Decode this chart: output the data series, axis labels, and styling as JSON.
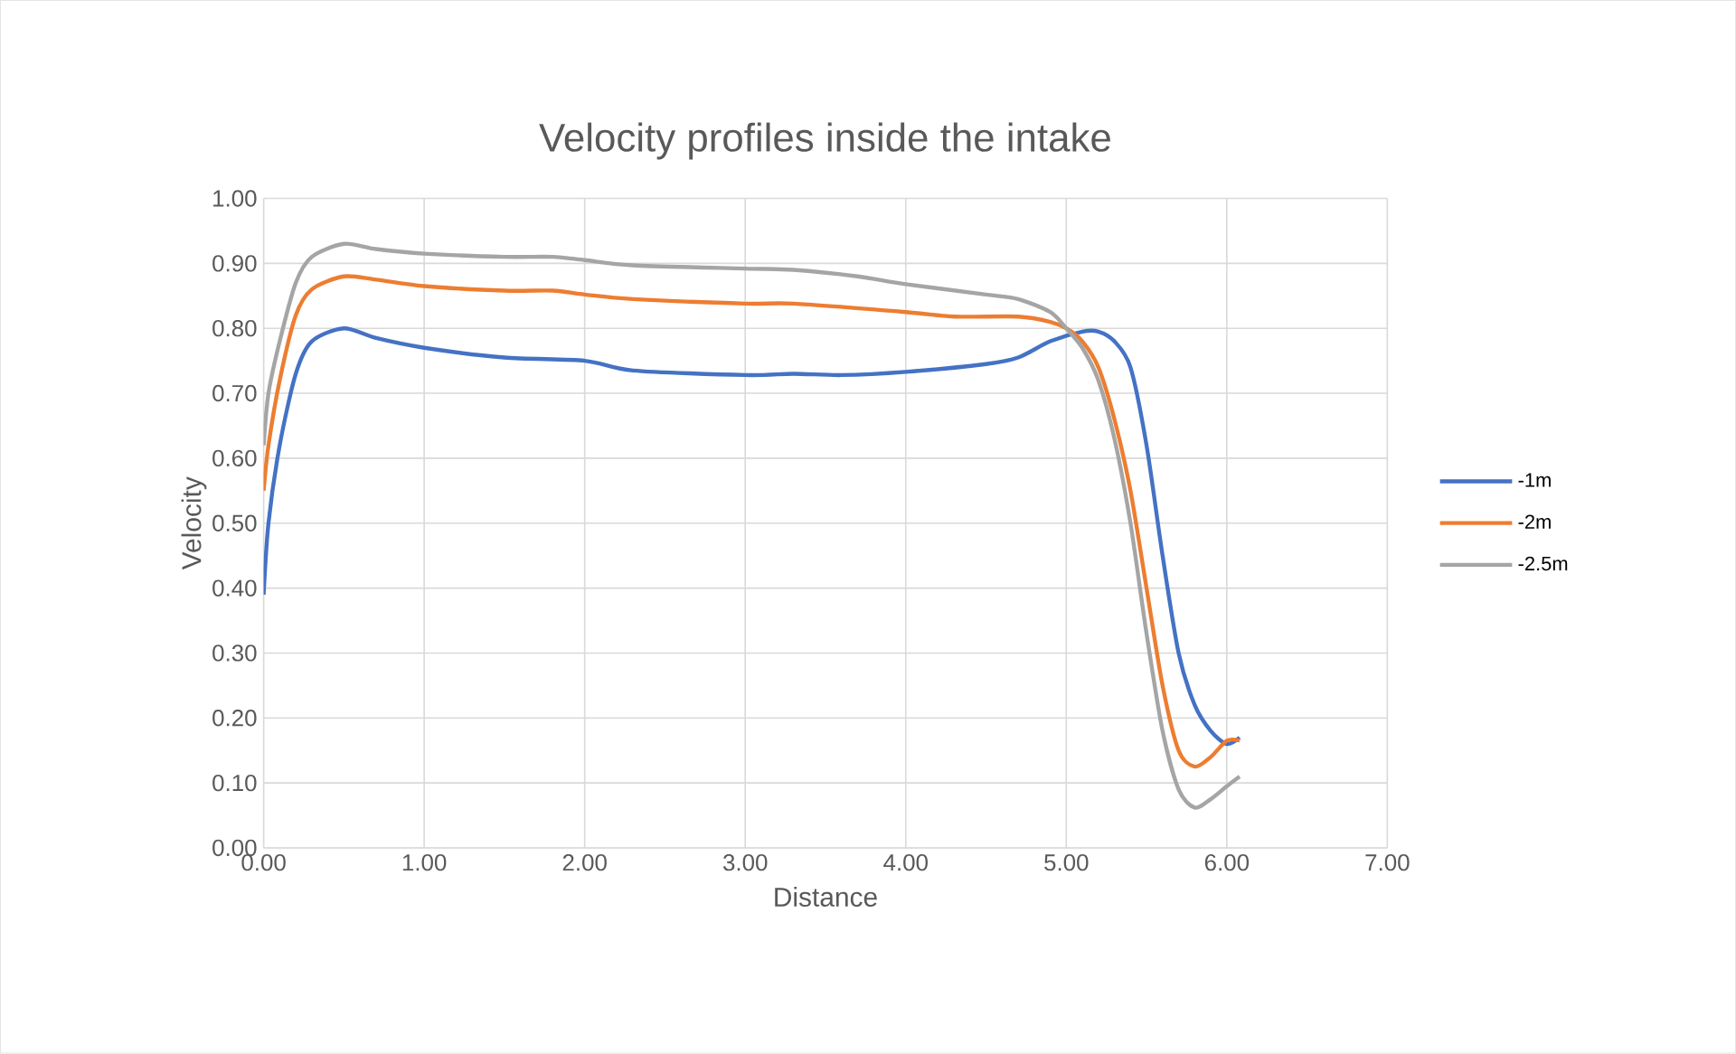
{
  "chart_data": {
    "type": "line",
    "title": "Velocity profiles inside the intake",
    "xlabel": "Distance",
    "ylabel": "Velocity",
    "xlim": [
      0,
      7
    ],
    "ylim": [
      0,
      1
    ],
    "xticks": [
      {
        "value": 0,
        "label": "0.00"
      },
      {
        "value": 1,
        "label": "1.00"
      },
      {
        "value": 2,
        "label": "2.00"
      },
      {
        "value": 3,
        "label": "3.00"
      },
      {
        "value": 4,
        "label": "4.00"
      },
      {
        "value": 5,
        "label": "5.00"
      },
      {
        "value": 6,
        "label": "6.00"
      },
      {
        "value": 7,
        "label": "7.00"
      }
    ],
    "yticks": [
      {
        "value": 0,
        "label": "0.00"
      },
      {
        "value": 0.1,
        "label": "0.10"
      },
      {
        "value": 0.2,
        "label": "0.20"
      },
      {
        "value": 0.3,
        "label": "0.30"
      },
      {
        "value": 0.4,
        "label": "0.40"
      },
      {
        "value": 0.5,
        "label": "0.50"
      },
      {
        "value": 0.6,
        "label": "0.60"
      },
      {
        "value": 0.7,
        "label": "0.70"
      },
      {
        "value": 0.8,
        "label": "0.80"
      },
      {
        "value": 0.9,
        "label": "0.90"
      },
      {
        "value": 1,
        "label": "1.00"
      }
    ],
    "grid": true,
    "legend": "right",
    "marker": "none",
    "line_style": "solid",
    "series": [
      {
        "name": "-1m",
        "color": "#4472c4",
        "x": [
          0,
          0.03,
          0.1,
          0.2,
          0.3,
          0.5,
          0.7,
          1.0,
          1.5,
          2.0,
          2.3,
          3.0,
          3.3,
          3.6,
          4.0,
          4.5,
          4.7,
          4.9,
          5.1,
          5.2,
          5.3,
          5.4,
          5.5,
          5.6,
          5.7,
          5.8,
          5.9,
          6.0,
          6.08
        ],
        "values": [
          0.39,
          0.5,
          0.62,
          0.73,
          0.78,
          0.8,
          0.785,
          0.77,
          0.755,
          0.75,
          0.735,
          0.728,
          0.73,
          0.728,
          0.733,
          0.745,
          0.755,
          0.78,
          0.795,
          0.795,
          0.78,
          0.74,
          0.62,
          0.45,
          0.3,
          0.22,
          0.18,
          0.16,
          0.17
        ]
      },
      {
        "name": "-2m",
        "color": "#ed7d31",
        "x": [
          0,
          0.03,
          0.1,
          0.2,
          0.3,
          0.5,
          0.7,
          1.0,
          1.5,
          1.8,
          2.0,
          2.3,
          3.0,
          3.3,
          4.0,
          4.3,
          4.7,
          4.9,
          5.0,
          5.1,
          5.2,
          5.3,
          5.4,
          5.5,
          5.6,
          5.7,
          5.8,
          5.9,
          6.0,
          6.08
        ],
        "values": [
          0.55,
          0.62,
          0.72,
          0.82,
          0.86,
          0.88,
          0.875,
          0.865,
          0.858,
          0.858,
          0.852,
          0.845,
          0.838,
          0.838,
          0.825,
          0.818,
          0.818,
          0.81,
          0.8,
          0.78,
          0.74,
          0.66,
          0.55,
          0.4,
          0.25,
          0.15,
          0.125,
          0.14,
          0.165,
          0.165
        ]
      },
      {
        "name": "-2.5m",
        "color": "#a5a5a5",
        "x": [
          0,
          0.03,
          0.1,
          0.2,
          0.3,
          0.5,
          0.7,
          1.0,
          1.5,
          1.8,
          2.0,
          2.3,
          3.0,
          3.3,
          3.7,
          4.0,
          4.5,
          4.7,
          4.9,
          5.0,
          5.1,
          5.2,
          5.3,
          5.4,
          5.5,
          5.6,
          5.7,
          5.8,
          5.9,
          6.0,
          6.08
        ],
        "values": [
          0.62,
          0.7,
          0.78,
          0.87,
          0.91,
          0.93,
          0.922,
          0.915,
          0.91,
          0.91,
          0.905,
          0.897,
          0.892,
          0.89,
          0.88,
          0.868,
          0.852,
          0.845,
          0.825,
          0.8,
          0.77,
          0.72,
          0.63,
          0.5,
          0.33,
          0.18,
          0.09,
          0.062,
          0.075,
          0.095,
          0.11
        ]
      }
    ]
  }
}
